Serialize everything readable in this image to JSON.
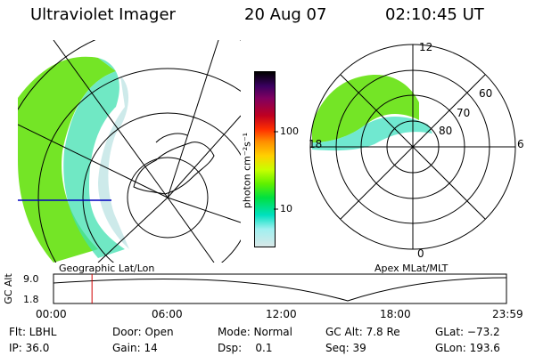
{
  "header": {
    "instrument": "Ultraviolet Imager",
    "date": "20 Aug 07",
    "time": "02:10:45 UT"
  },
  "colorbar": {
    "unit_label": "photon cm⁻²s⁻¹",
    "ticks": [
      "100",
      "10"
    ],
    "colors": [
      "#000000",
      "#3a0060",
      "#800060",
      "#c00020",
      "#ff3000",
      "#ff9000",
      "#ffd000",
      "#c8ff00",
      "#60f000",
      "#00e040",
      "#00e0c0",
      "#a0f0f0",
      "#d8e8e8"
    ]
  },
  "left_map": {
    "caption": "Geographic Lat/Lon"
  },
  "right_map": {
    "caption": "Apex MLat/MLT",
    "mlt_labels": {
      "top": "12",
      "right": "6",
      "bottom": "0",
      "left": "18"
    },
    "lat_labels": [
      "60",
      "70",
      "80"
    ]
  },
  "orbit_plot": {
    "ylabel": "GC Alt",
    "ymax": "9.0",
    "ymin": "1.8",
    "xticks": [
      "00:00",
      "06:00",
      "12:00",
      "18:00",
      "23:59"
    ],
    "marker_fraction": 0.085,
    "marker_color": "#d00000"
  },
  "meta": {
    "row1": {
      "filter": "Flt: LBHL",
      "door": "Door: Open",
      "mode": "Mode: Normal",
      "gcalt": "GC Alt: 7.8 Re",
      "glat": "GLat: −73.2"
    },
    "row2": {
      "ip": "IP: 36.0",
      "gain": "Gain: 14",
      "dsp": "Dsp:    0.1",
      "seq": "Seq: 39",
      "glon": "GLon: 193.6"
    }
  }
}
